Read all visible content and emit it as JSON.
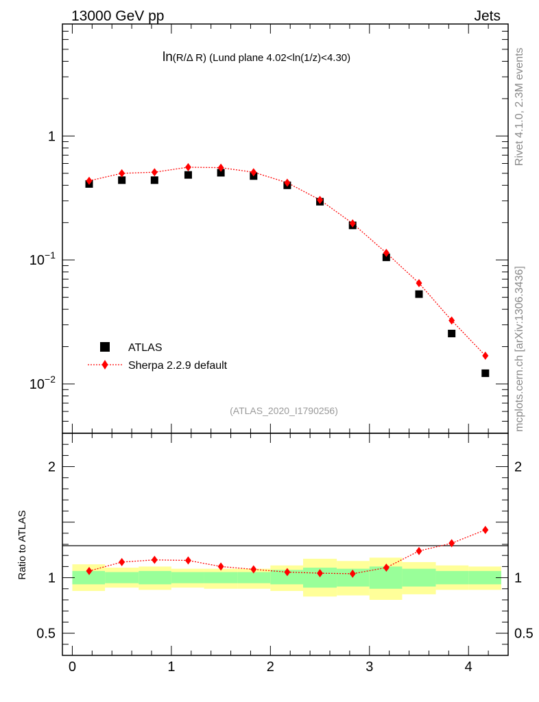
{
  "header": {
    "left_title": "13000 GeV pp",
    "right_title": "Jets"
  },
  "side_labels": {
    "rivet": "Rivet 4.1.0,  2.3M events",
    "mcplots": "mcplots.cern.ch [arXiv:1306.3436]"
  },
  "plot_title": {
    "prefix": "ln",
    "paren": "(R/Δ R)",
    "rest": " (Lund plane 4.02<ln(1/z)<4.30)"
  },
  "analysis_id": "(ATLAS_2020_I1790256)",
  "legend": {
    "data_label": "ATLAS",
    "mc_label": "Sherpa 2.2.9 default"
  },
  "colors": {
    "data": "#000000",
    "mc": "#ff0000",
    "band_inner": "#99ff99",
    "band_outer": "#ffff99",
    "analysis_text": "#999999",
    "side_text": "#888888"
  },
  "chart_data": [
    {
      "type": "scatter",
      "name": "main",
      "yscale": "log",
      "xlim": [
        -0.1,
        4.4
      ],
      "ylim": [
        0.004,
        8.0
      ],
      "y_ticks": [
        {
          "value": 1,
          "label": "1"
        },
        {
          "value": 0.1,
          "label": "10",
          "exp": "−1"
        },
        {
          "value": 0.01,
          "label": "10",
          "exp": "−2"
        }
      ],
      "legend_position": "lower-left",
      "series": [
        {
          "name": "ATLAS",
          "marker": "square",
          "x": [
            0.17,
            0.5,
            0.83,
            1.17,
            1.5,
            1.83,
            2.17,
            2.5,
            2.83,
            3.17,
            3.5,
            3.83,
            4.17
          ],
          "y": [
            0.41,
            0.44,
            0.44,
            0.485,
            0.505,
            0.475,
            0.4,
            0.295,
            0.19,
            0.105,
            0.053,
            0.0255,
            0.0122
          ]
        },
        {
          "name": "Sherpa 2.2.9 default",
          "marker": "diamond",
          "line": "dotted",
          "x": [
            0.17,
            0.5,
            0.83,
            1.17,
            1.5,
            1.83,
            2.17,
            2.5,
            2.83,
            3.17,
            3.5,
            3.83,
            4.17
          ],
          "y": [
            0.435,
            0.5,
            0.51,
            0.56,
            0.555,
            0.51,
            0.42,
            0.305,
            0.197,
            0.114,
            0.065,
            0.0325,
            0.0169
          ]
        }
      ]
    },
    {
      "type": "scatter",
      "name": "ratio",
      "ylabel": "Ratio to ATLAS",
      "xlim": [
        -0.1,
        4.4
      ],
      "ylim": [
        0.3,
        2.3
      ],
      "y_ticks": [
        {
          "value": 0.5,
          "label": "0.5"
        },
        {
          "value": 1,
          "label": "1"
        },
        {
          "value": 2,
          "label": "2"
        }
      ],
      "x_ticks": [
        {
          "value": 0,
          "label": "0"
        },
        {
          "value": 1,
          "label": "1"
        },
        {
          "value": 2,
          "label": "2"
        },
        {
          "value": 3,
          "label": "3"
        },
        {
          "value": 4,
          "label": "4"
        }
      ],
      "bins": [
        0,
        0.33,
        0.67,
        1.0,
        1.33,
        1.67,
        2.0,
        2.33,
        2.67,
        3.0,
        3.33,
        3.67,
        4.0,
        4.33
      ],
      "band_inner": [
        [
          0.94,
          1.06
        ],
        [
          0.95,
          1.05
        ],
        [
          0.94,
          1.06
        ],
        [
          0.95,
          1.05
        ],
        [
          0.95,
          1.05
        ],
        [
          0.95,
          1.05
        ],
        [
          0.94,
          1.07
        ],
        [
          0.91,
          1.09
        ],
        [
          0.92,
          1.08
        ],
        [
          0.9,
          1.1
        ],
        [
          0.92,
          1.08
        ],
        [
          0.94,
          1.06
        ],
        [
          0.94,
          1.06
        ]
      ],
      "band_outer": [
        [
          0.88,
          1.12
        ],
        [
          0.91,
          1.09
        ],
        [
          0.89,
          1.1
        ],
        [
          0.91,
          1.08
        ],
        [
          0.9,
          1.08
        ],
        [
          0.9,
          1.08
        ],
        [
          0.88,
          1.11
        ],
        [
          0.83,
          1.17
        ],
        [
          0.84,
          1.15
        ],
        [
          0.8,
          1.18
        ],
        [
          0.85,
          1.14
        ],
        [
          0.89,
          1.11
        ],
        [
          0.89,
          1.1
        ]
      ],
      "series": [
        {
          "name": "Sherpa 2.2.9 default",
          "marker": "diamond",
          "line": "dotted",
          "x": [
            0.17,
            0.5,
            0.83,
            1.17,
            1.5,
            1.83,
            2.17,
            2.5,
            2.83,
            3.17,
            3.5,
            3.83,
            4.17
          ],
          "y": [
            1.06,
            1.14,
            1.16,
            1.155,
            1.1,
            1.075,
            1.05,
            1.04,
            1.035,
            1.09,
            1.24,
            1.31,
            1.43
          ]
        }
      ]
    }
  ]
}
